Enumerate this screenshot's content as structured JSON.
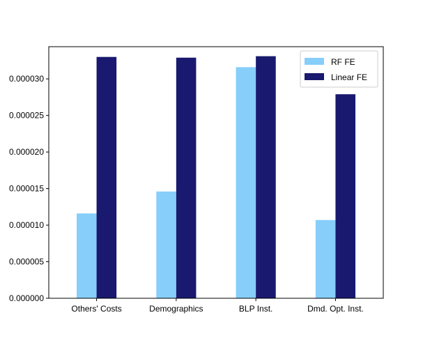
{
  "chart_data": {
    "type": "bar",
    "categories": [
      "Others' Costs",
      "Demographics",
      "BLP Inst.",
      "Dmd. Opt. Inst."
    ],
    "series": [
      {
        "name": "RF FE",
        "color": "#87cefa",
        "values": [
          1.16e-05,
          1.46e-05,
          3.16e-05,
          1.07e-05
        ]
      },
      {
        "name": "Linear FE",
        "color": "#191970",
        "values": [
          3.3e-05,
          3.29e-05,
          3.31e-05,
          2.79e-05
        ]
      }
    ],
    "title": "",
    "xlabel": "",
    "ylabel": "",
    "ylim": [
      0,
      3.44e-05
    ],
    "yticks": [
      0,
      5e-06,
      1e-05,
      1.5e-05,
      2e-05,
      2.5e-05,
      3e-05
    ],
    "ytick_labels": [
      "0.000000",
      "0.000005",
      "0.000010",
      "0.000015",
      "0.000020",
      "0.000025",
      "0.000030"
    ],
    "legend": "top-right",
    "grid": false
  }
}
